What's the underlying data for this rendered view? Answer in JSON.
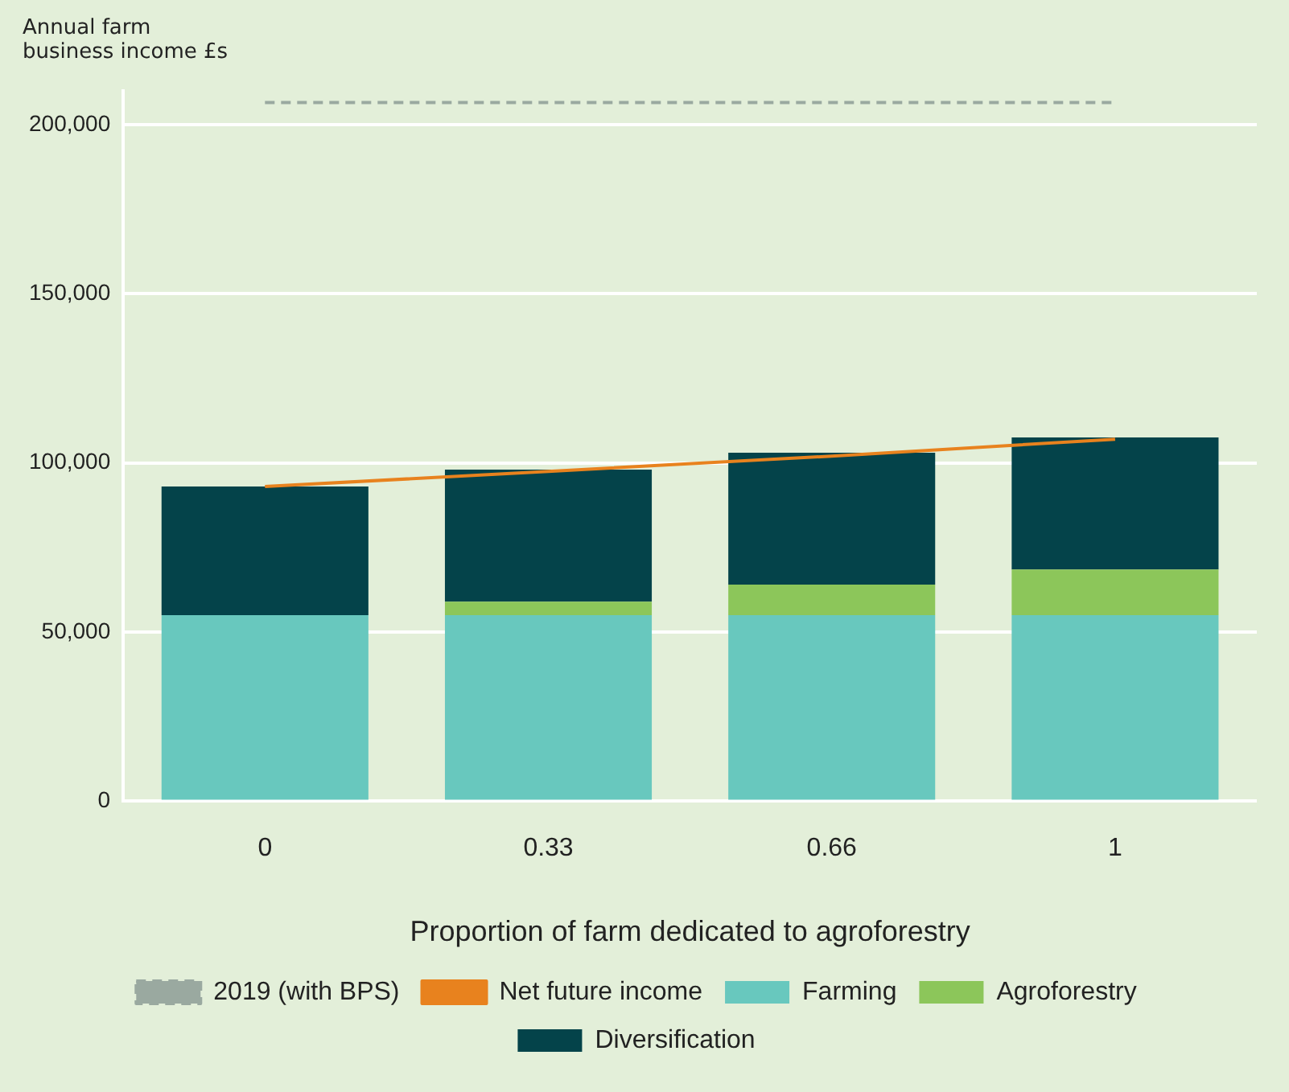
{
  "chart_data": {
    "type": "bar",
    "stacked": true,
    "ylabel": "Annual farm business income £s",
    "xlabel": "Proportion of farm dedicated to agroforestry",
    "categories": [
      "0",
      "0.33",
      "0.66",
      "1"
    ],
    "series": [
      {
        "name": "Farming",
        "color": "#68c8be",
        "values": [
          55000,
          55000,
          55000,
          55000
        ]
      },
      {
        "name": "Agroforestry",
        "color": "#8cc65a",
        "values": [
          0,
          4000,
          9000,
          13500
        ]
      },
      {
        "name": "Diversification",
        "color": "#04434a",
        "values": [
          38000,
          39000,
          39000,
          39000
        ]
      },
      {
        "name": "2019 (with BPS)",
        "type": "line",
        "color": "#9aa9a0",
        "line_style": "dashed",
        "marker": "none",
        "values": [
          206500,
          206500,
          206500,
          206500
        ]
      },
      {
        "name": "Net future income",
        "type": "line",
        "color": "#e8821e",
        "line_style": "solid",
        "marker": "none",
        "values": [
          93000,
          97500,
          102000,
          107000
        ]
      }
    ],
    "ylim": [
      0,
      210000
    ],
    "yticks": [
      0,
      {
        "value": 50000,
        "label": "50,000"
      },
      {
        "value": 100000,
        "label": "100,000"
      },
      {
        "value": 150000,
        "label": "150,000"
      },
      {
        "value": 200000,
        "label": "200,000"
      }
    ],
    "grid": "y",
    "legend": "bottom"
  }
}
